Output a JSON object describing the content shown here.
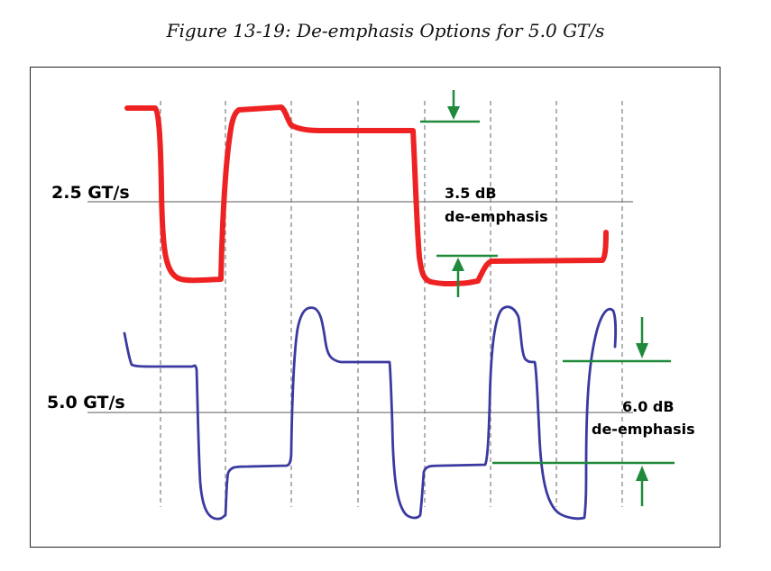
{
  "figure": {
    "caption": "Figure 13-19: De-emphasis Options for 5.0 GT/s"
  },
  "waveforms": [
    {
      "rate_label": "2.5 GT/s",
      "deemphasis_value": "3.5 dB",
      "deemphasis_word": "de-emphasis",
      "color": "#ee2222"
    },
    {
      "rate_label": "5.0 GT/s",
      "deemphasis_value": "6.0 dB",
      "deemphasis_word": "de-emphasis",
      "color": "#3a3aa0"
    }
  ],
  "colors": {
    "arrow": "#1e8a3a",
    "gridline": "#888888",
    "baseline": "#7a7a7a"
  }
}
